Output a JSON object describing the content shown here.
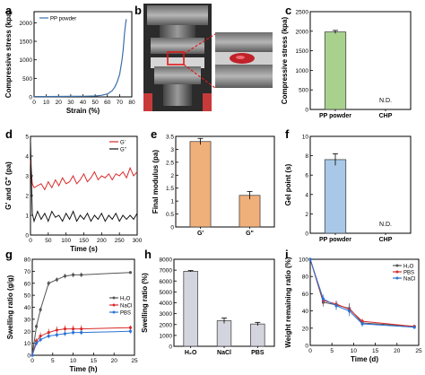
{
  "colors": {
    "axis": "#000000",
    "curve_blue": "#3d6fa8",
    "bar_green": "#a9d18e",
    "bar_orange": "#f0b07a",
    "bar_blue": "#a9c8e8",
    "bar_gray": "#d4d4de",
    "line_red": "#d92b2b",
    "line_black": "#111111",
    "line_dark": "#555555",
    "line_blue": "#2a74d6",
    "highlight_red": "#e01818"
  },
  "chart_data": [
    {
      "panel": "a",
      "type": "line",
      "xlabel": "Strain (%)",
      "ylabel": "Compressive stress (kpa)",
      "xlim": [
        0,
        80
      ],
      "ylim": [
        0,
        2300
      ],
      "xticks": [
        0,
        10,
        20,
        30,
        40,
        50,
        60,
        70,
        80
      ],
      "yticks": [
        0,
        500,
        1000,
        1500,
        2000
      ],
      "legend": "top-left",
      "series": [
        {
          "name": "PP powder",
          "x": [
            0,
            10,
            20,
            30,
            40,
            50,
            55,
            60,
            62,
            64,
            66,
            68,
            70,
            72,
            73,
            74,
            75,
            75.5
          ],
          "y": [
            10,
            10,
            12,
            14,
            16,
            25,
            40,
            80,
            120,
            170,
            260,
            400,
            600,
            1000,
            1300,
            1700,
            2000,
            2100
          ]
        }
      ]
    },
    {
      "panel": "c",
      "type": "bar",
      "xlabel": "",
      "ylabel": "Compressive stress (kpa)",
      "ylim": [
        0,
        2500
      ],
      "yticks": [
        0,
        500,
        1000,
        1500,
        2000,
        2500
      ],
      "categories": [
        "PP powder",
        "CHP"
      ],
      "values": [
        1980,
        null
      ],
      "errors": [
        40,
        null
      ],
      "annotations": [
        "",
        "N.D."
      ]
    },
    {
      "panel": "d",
      "type": "line",
      "xlabel": "Time (s)",
      "ylabel": "G' and G\" (pa)",
      "xlim": [
        0,
        300
      ],
      "ylim": [
        0,
        5
      ],
      "xticks": [
        0,
        50,
        100,
        150,
        200,
        250,
        300
      ],
      "yticks": [
        0,
        1,
        2,
        3,
        4,
        5
      ],
      "legend": "top-right",
      "series": [
        {
          "name": "G'",
          "x": [
            0,
            5,
            10,
            20,
            30,
            40,
            50,
            60,
            70,
            80,
            90,
            100,
            110,
            120,
            130,
            140,
            150,
            160,
            170,
            180,
            190,
            200,
            210,
            220,
            230,
            240,
            250,
            260,
            270,
            280,
            290,
            300
          ],
          "y": [
            3.8,
            2.6,
            2.4,
            2.5,
            2.6,
            2.3,
            2.7,
            2.4,
            2.8,
            2.5,
            2.9,
            2.6,
            2.7,
            3.0,
            2.6,
            2.8,
            3.1,
            2.7,
            2.9,
            3.2,
            2.8,
            3.0,
            2.9,
            3.1,
            2.8,
            3.1,
            3.0,
            3.2,
            2.9,
            3.4,
            3.0,
            3.2
          ]
        },
        {
          "name": "G\"",
          "x": [
            0,
            5,
            10,
            20,
            30,
            40,
            50,
            60,
            70,
            80,
            90,
            100,
            110,
            120,
            130,
            140,
            150,
            160,
            170,
            180,
            190,
            200,
            210,
            220,
            230,
            240,
            250,
            260,
            270,
            280,
            290,
            300
          ],
          "y": [
            4.8,
            1.1,
            0.7,
            1.2,
            0.8,
            1.1,
            0.7,
            1.2,
            0.9,
            1.0,
            0.7,
            1.1,
            0.8,
            1.2,
            0.7,
            1.0,
            0.8,
            1.1,
            0.7,
            1.0,
            0.8,
            1.1,
            0.7,
            1.0,
            0.8,
            1.1,
            0.7,
            1.0,
            0.8,
            1.0,
            0.8,
            1.1
          ]
        }
      ]
    },
    {
      "panel": "e",
      "type": "bar",
      "xlabel": "",
      "ylabel": "Final modulus (pa)",
      "ylim": [
        0,
        3.5
      ],
      "yticks": [
        0,
        0.5,
        1.0,
        1.5,
        2.0,
        2.5,
        3.0,
        3.5
      ],
      "categories": [
        "G'",
        "G\""
      ],
      "values": [
        3.3,
        1.22
      ],
      "errors": [
        0.12,
        0.15
      ],
      "annotations": [
        "",
        ""
      ]
    },
    {
      "panel": "f",
      "type": "bar",
      "xlabel": "",
      "ylabel": "Gel point (s)",
      "ylim": [
        0,
        10
      ],
      "yticks": [
        0,
        2,
        4,
        6,
        8,
        10
      ],
      "categories": [
        "PP powder",
        "CHP"
      ],
      "values": [
        7.6,
        null
      ],
      "errors": [
        0.6,
        null
      ],
      "annotations": [
        "",
        "N.D."
      ]
    },
    {
      "panel": "g",
      "type": "line",
      "xlabel": "Time (h)",
      "ylabel": "Swelling ratio (g/g)",
      "xlim": [
        0,
        25
      ],
      "ylim": [
        0,
        80
      ],
      "xticks": [
        0,
        5,
        10,
        15,
        20,
        25
      ],
      "yticks": [
        0,
        10,
        20,
        30,
        40,
        50,
        60,
        70,
        80
      ],
      "legend": "right",
      "series": [
        {
          "name": "H₂O",
          "x": [
            0,
            1,
            2,
            4,
            6,
            8,
            10,
            12,
            24
          ],
          "y": [
            0,
            24,
            38,
            60,
            63,
            66,
            67,
            67,
            69
          ],
          "err": [
            0,
            2,
            2,
            2,
            2,
            2,
            2,
            2,
            0
          ]
        },
        {
          "name": "NaCl",
          "x": [
            0,
            1,
            2,
            4,
            6,
            8,
            10,
            12,
            24
          ],
          "y": [
            0,
            12,
            16,
            19,
            21,
            22,
            22,
            22,
            23
          ],
          "err": [
            0,
            2,
            3,
            3,
            3,
            3,
            3,
            3,
            2
          ]
        },
        {
          "name": "PBS",
          "x": [
            0,
            1,
            2,
            4,
            6,
            8,
            10,
            12,
            24
          ],
          "y": [
            0,
            10,
            13,
            16,
            17,
            18,
            19,
            19,
            20
          ],
          "err": [
            0,
            2,
            2,
            2,
            2,
            2,
            2,
            2,
            2
          ]
        }
      ]
    },
    {
      "panel": "h",
      "type": "bar",
      "xlabel": "",
      "ylabel": "Swelling ratio (%)",
      "ylim": [
        0,
        8000
      ],
      "yticks": [
        0,
        1000,
        2000,
        3000,
        4000,
        5000,
        6000,
        7000,
        8000
      ],
      "categories": [
        "H₂O",
        "NaCl",
        "PBS"
      ],
      "values": [
        6900,
        2350,
        2050
      ],
      "errors": [
        60,
        250,
        150
      ],
      "annotations": [
        "",
        "",
        ""
      ]
    },
    {
      "panel": "i",
      "type": "line",
      "xlabel": "Time (d)",
      "ylabel": "Weight remaining ratio (%)",
      "xlim": [
        0,
        25
      ],
      "ylim": [
        0,
        100
      ],
      "xticks": [
        0,
        5,
        10,
        15,
        20,
        25
      ],
      "yticks": [
        0,
        20,
        40,
        60,
        80,
        100
      ],
      "legend": "top-right",
      "series": [
        {
          "name": "H₂O",
          "x": [
            0,
            3,
            6,
            9,
            12,
            24
          ],
          "y": [
            100,
            50,
            47,
            43,
            26,
            22
          ],
          "err": [
            0,
            5,
            5,
            6,
            4,
            2
          ]
        },
        {
          "name": "PBS",
          "x": [
            0,
            3,
            6,
            9,
            12,
            24
          ],
          "y": [
            100,
            52,
            48,
            42,
            28,
            22
          ],
          "err": [
            0,
            4,
            4,
            5,
            3,
            2
          ]
        },
        {
          "name": "NaCl",
          "x": [
            0,
            3,
            6,
            9,
            12,
            24
          ],
          "y": [
            100,
            54,
            46,
            40,
            25,
            21
          ],
          "err": [
            0,
            5,
            5,
            6,
            3,
            2
          ]
        }
      ]
    }
  ],
  "panel_labels": [
    "a",
    "b",
    "c",
    "d",
    "e",
    "f",
    "g",
    "h",
    "i"
  ]
}
